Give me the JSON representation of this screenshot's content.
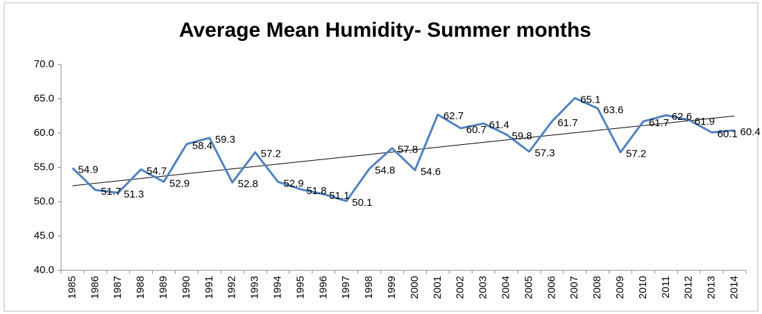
{
  "chart_data": {
    "type": "line",
    "title": "Average Mean Humidity- Summer months",
    "categories": [
      "1985",
      "1986",
      "1987",
      "1988",
      "1989",
      "1990",
      "1991",
      "1992",
      "1993",
      "1994",
      "1995",
      "1996",
      "1997",
      "1998",
      "1999",
      "2000",
      "2001",
      "2002",
      "2003",
      "2004",
      "2005",
      "2006",
      "2007",
      "2008",
      "2009",
      "2010",
      "2011",
      "2012",
      "2013",
      "2014"
    ],
    "series": [
      {
        "color": "#4f81bd",
        "values": [
          54.9,
          51.7,
          51.3,
          54.7,
          52.9,
          58.4,
          59.3,
          52.8,
          57.2,
          52.9,
          51.8,
          51.1,
          50.1,
          54.8,
          57.8,
          54.6,
          62.7,
          60.7,
          61.4,
          59.8,
          57.3,
          61.7,
          65.1,
          63.6,
          57.2,
          61.7,
          62.6,
          61.9,
          60.1,
          60.4
        ]
      }
    ],
    "trendline": true,
    "ylim": [
      40,
      70
    ],
    "yticks": [
      {
        "value": 40,
        "label": "40.0"
      },
      {
        "value": 45,
        "label": "45.0"
      },
      {
        "value": 50,
        "label": "50.0"
      },
      {
        "value": 55,
        "label": "55.0"
      },
      {
        "value": 60,
        "label": "60.0"
      },
      {
        "value": 65,
        "label": "65.0"
      },
      {
        "value": 70,
        "label": "70.0"
      }
    ]
  }
}
